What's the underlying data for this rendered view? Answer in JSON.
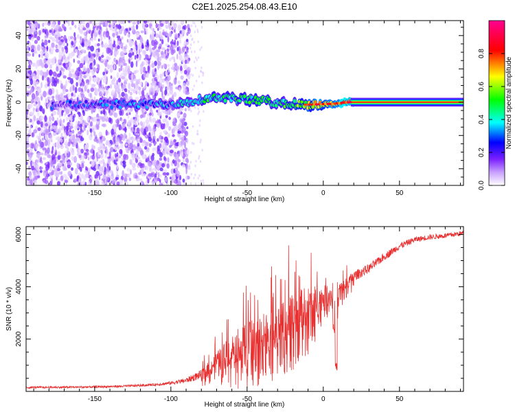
{
  "chart_data": [
    {
      "type": "heatmap",
      "title": "C2E1.2025.254.08.43.E10",
      "xlabel": "Height of straight line (km)",
      "ylabel": "Frequency (Hz)",
      "xlim": [
        -195,
        92
      ],
      "ylim": [
        -50,
        49
      ],
      "xticks": [
        -150,
        -100,
        -50,
        0,
        50
      ],
      "yticks": [
        -40,
        -20,
        0,
        20,
        40
      ],
      "colorbar": {
        "label": "Normalized spectral amplitude",
        "range": [
          0,
          1
        ],
        "ticks": [
          "0.0",
          "0.2",
          "0.4",
          "0.6",
          "0.8"
        ],
        "colors": [
          "#ffffff",
          "#a050ff",
          "#0000ff",
          "#00ffff",
          "#00ff00",
          "#ffff00",
          "#ff0000",
          "#ff00a0"
        ]
      },
      "features": {
        "noise_region_x": [
          -195,
          -88
        ],
        "ridge": [
          {
            "x": -175,
            "f": -2,
            "amp": 0.22
          },
          {
            "x": -150,
            "f": -1,
            "amp": 0.25
          },
          {
            "x": -125,
            "f": -1.5,
            "amp": 0.3
          },
          {
            "x": -100,
            "f": -1,
            "amp": 0.32
          },
          {
            "x": -85,
            "f": 1,
            "amp": 0.42
          },
          {
            "x": -70,
            "f": 3,
            "amp": 0.45
          },
          {
            "x": -55,
            "f": 2,
            "amp": 0.48
          },
          {
            "x": -40,
            "f": 1,
            "amp": 0.45
          },
          {
            "x": -25,
            "f": -1,
            "amp": 0.5
          },
          {
            "x": -10,
            "f": -1.5,
            "amp": 0.62
          },
          {
            "x": 5,
            "f": -1,
            "amp": 0.7
          },
          {
            "x": 18,
            "f": 0,
            "amp": 0.85
          },
          {
            "x": 40,
            "f": 0,
            "amp": 0.88
          },
          {
            "x": 92,
            "f": 0,
            "amp": 0.88
          }
        ]
      }
    },
    {
      "type": "line",
      "title": "",
      "xlabel": "Height of straight line (km)",
      "ylabel": "SNR (10 * v/v)",
      "xlim": [
        -195,
        92
      ],
      "ylim": [
        0,
        6300
      ],
      "xticks": [
        -150,
        -100,
        -50,
        0,
        50
      ],
      "yticks": [
        2000,
        4000,
        6000
      ],
      "series": [
        {
          "name": "SNR",
          "color": "#e83030",
          "x": [
            -195,
            -170,
            -150,
            -130,
            -110,
            -100,
            -90,
            -80,
            -75,
            -70,
            -65,
            -60,
            -55,
            -50,
            -45,
            -40,
            -35,
            -30,
            -25,
            -20,
            -15,
            -10,
            -5,
            0,
            5,
            8,
            10,
            15,
            20,
            30,
            40,
            50,
            60,
            70,
            80,
            92
          ],
          "y": [
            150,
            160,
            170,
            200,
            260,
            320,
            420,
            650,
            900,
            1150,
            1400,
            1600,
            1800,
            1900,
            2050,
            2200,
            2300,
            2450,
            2650,
            2850,
            3100,
            3300,
            3450,
            3600,
            3750,
            2400,
            3850,
            4100,
            4400,
            4700,
            5150,
            5550,
            5800,
            5900,
            5950,
            6050
          ],
          "spread": [
            80,
            80,
            80,
            90,
            100,
            130,
            200,
            350,
            500,
            700,
            900,
            1200,
            1300,
            1400,
            1500,
            1600,
            1500,
            1600,
            1700,
            1700,
            1600,
            1500,
            1200,
            900,
            700,
            500,
            600,
            500,
            400,
            350,
            300,
            250,
            220,
            200,
            200,
            200
          ]
        }
      ]
    }
  ]
}
